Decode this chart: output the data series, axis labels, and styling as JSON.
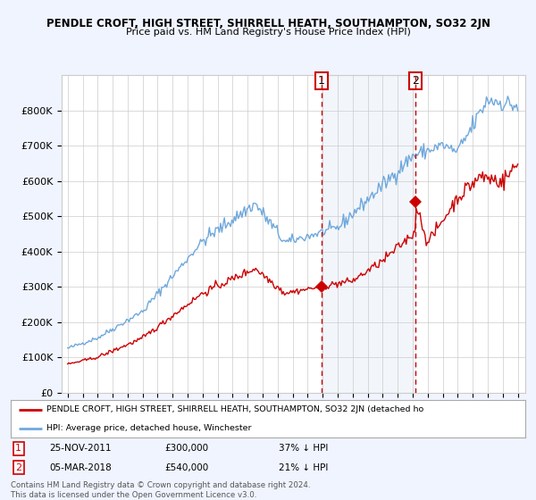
{
  "title": "PENDLE CROFT, HIGH STREET, SHIRRELL HEATH, SOUTHAMPTON, SO32 2JN",
  "subtitle": "Price paid vs. HM Land Registry's House Price Index (HPI)",
  "hpi_color": "#6fa8dc",
  "price_color": "#CC0000",
  "shade_color": "#dce8f5",
  "background_color": "#f0f4ff",
  "plot_bg_color": "#ffffff",
  "ylim": [
    0,
    900000
  ],
  "yticks": [
    0,
    100000,
    200000,
    300000,
    400000,
    500000,
    600000,
    700000,
    800000
  ],
  "ytick_labels": [
    "£0",
    "£100K",
    "£200K",
    "£300K",
    "£400K",
    "£500K",
    "£600K",
    "£700K",
    "£800K"
  ],
  "sale1_date": "25-NOV-2011",
  "sale1_price": 300000,
  "sale1_pct": "37% ↓ HPI",
  "sale1_x": 2011.9,
  "sale2_date": "05-MAR-2018",
  "sale2_price": 540000,
  "sale2_pct": "21% ↓ HPI",
  "sale2_x": 2018.17,
  "legend_line1": "PENDLE CROFT, HIGH STREET, SHIRRELL HEATH, SOUTHAMPTON, SO32 2JN (detached ho",
  "legend_line2": "HPI: Average price, detached house, Winchester",
  "footer": "Contains HM Land Registry data © Crown copyright and database right 2024.\nThis data is licensed under the Open Government Licence v3.0."
}
